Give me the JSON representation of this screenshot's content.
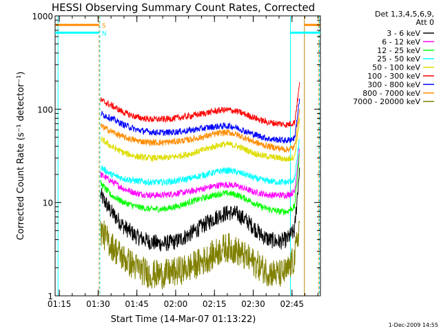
{
  "chart_data": {
    "type": "line",
    "title": "HESSI Observing Summary Count Rates, Corrected",
    "xlabel": "Start Time (14-Mar-07 01:13:22)",
    "ylabel": "Corrected Count Rate (s⁻¹ detector⁻¹)",
    "y_scale": "log",
    "ylim": [
      1,
      1000
    ],
    "xlim_minutes": [
      73.37,
      176
    ],
    "x_ticks": [
      "01:15",
      "01:30",
      "01:45",
      "02:00",
      "02:15",
      "02:30",
      "02:45"
    ],
    "y_ticks": [
      "1",
      "10",
      "100",
      "1000"
    ],
    "legend_header": [
      "Det 1,3,4,5,6,9,",
      "Att 0"
    ],
    "legend_position": "right",
    "series": [
      {
        "name": "3 - 6 keV",
        "color": "#000000",
        "x": [
          91,
          95,
          100,
          105,
          110,
          115,
          120,
          125,
          130,
          135,
          138,
          141,
          144,
          147,
          150,
          153,
          156,
          160,
          163,
          166,
          168
        ],
        "y": [
          12,
          8,
          5.5,
          4.3,
          3.8,
          3.6,
          3.8,
          4.5,
          5.5,
          6.8,
          7.5,
          7.8,
          7.5,
          6.5,
          5.5,
          4.5,
          4,
          3.8,
          4,
          5,
          25
        ]
      },
      {
        "name": "6 - 12 keV",
        "color": "#ff00ff",
        "x": [
          91,
          95,
          100,
          105,
          110,
          115,
          120,
          125,
          130,
          135,
          138,
          141,
          144,
          147,
          150,
          153,
          156,
          160,
          163,
          166,
          168
        ],
        "y": [
          20,
          17,
          14,
          12.5,
          12,
          12,
          12.5,
          13,
          14,
          15,
          15.5,
          15.5,
          15,
          14,
          13,
          12.5,
          12,
          12,
          12,
          13,
          40
        ]
      },
      {
        "name": "12 - 25 keV",
        "color": "#00ff00",
        "x": [
          91,
          95,
          100,
          105,
          110,
          115,
          120,
          125,
          130,
          135,
          138,
          141,
          144,
          147,
          150,
          153,
          156,
          160,
          163,
          166,
          168
        ],
        "y": [
          16,
          12,
          10,
          9,
          8.5,
          8.5,
          9,
          10,
          11,
          12,
          12.5,
          12.5,
          12,
          11,
          10,
          9,
          8.5,
          8,
          8,
          9,
          35
        ]
      },
      {
        "name": "25 - 50 keV",
        "color": "#00ffff",
        "x": [
          91,
          95,
          100,
          105,
          110,
          115,
          120,
          125,
          130,
          135,
          138,
          141,
          144,
          147,
          150,
          153,
          156,
          160,
          163,
          166,
          168
        ],
        "y": [
          24,
          20,
          18,
          17,
          16.5,
          16.5,
          17,
          18,
          19.5,
          21,
          22,
          22,
          21,
          20,
          18.5,
          17.5,
          17,
          16.5,
          16.5,
          17.5,
          50
        ]
      },
      {
        "name": "50 - 100 keV",
        "color": "#dddd00",
        "x": [
          91,
          95,
          100,
          105,
          110,
          115,
          120,
          125,
          130,
          135,
          138,
          141,
          144,
          147,
          150,
          153,
          156,
          160,
          163,
          166,
          168
        ],
        "y": [
          48,
          40,
          34,
          31,
          30,
          30,
          31,
          33,
          36,
          40,
          42,
          42,
          40,
          37,
          34,
          32,
          31,
          30,
          29,
          31,
          80
        ]
      },
      {
        "name": "100 - 300 keV",
        "color": "#ff0000",
        "x": [
          91,
          95,
          100,
          105,
          110,
          115,
          120,
          125,
          130,
          135,
          138,
          141,
          144,
          147,
          150,
          153,
          156,
          160,
          163,
          166,
          168
        ],
        "y": [
          125,
          110,
          92,
          82,
          78,
          78,
          80,
          84,
          89,
          95,
          98,
          98,
          94,
          88,
          82,
          76,
          72,
          70,
          68,
          72,
          190
        ]
      },
      {
        "name": "300 - 800 keV",
        "color": "#0000ff",
        "x": [
          91,
          95,
          100,
          105,
          110,
          115,
          120,
          125,
          130,
          135,
          138,
          141,
          144,
          147,
          150,
          153,
          156,
          160,
          163,
          166,
          168
        ],
        "y": [
          90,
          80,
          68,
          60,
          57,
          56,
          57,
          59,
          62,
          65,
          66,
          66,
          63,
          58,
          54,
          51,
          48,
          47,
          46,
          49,
          130
        ]
      },
      {
        "name": "800 - 7000 keV",
        "color": "#ff8c00",
        "x": [
          91,
          95,
          100,
          105,
          110,
          115,
          120,
          125,
          130,
          135,
          138,
          141,
          144,
          147,
          150,
          153,
          156,
          160,
          163,
          166,
          168
        ],
        "y": [
          66,
          58,
          50,
          46,
          44,
          44,
          45,
          47,
          50,
          54,
          56,
          56,
          53,
          49,
          45,
          42,
          40,
          38,
          37,
          39,
          100
        ]
      },
      {
        "name": "7000 - 20000 keV",
        "color": "#808000",
        "x": [
          91,
          95,
          100,
          105,
          110,
          115,
          120,
          125,
          130,
          135,
          138,
          141,
          144,
          147,
          150,
          153,
          156,
          160,
          163,
          166,
          168
        ],
        "y": [
          5,
          3.5,
          2.5,
          2,
          1.7,
          1.7,
          1.8,
          2,
          2.3,
          2.8,
          3.2,
          3.3,
          3,
          2.6,
          2.3,
          2,
          1.8,
          1.7,
          1.8,
          2.5,
          6
        ]
      }
    ],
    "vertical_markers": [
      {
        "x": 74.5,
        "color": "#00ffff",
        "style": "solid"
      },
      {
        "x": 90.4,
        "color": "#ff8c00",
        "style": "dashed"
      },
      {
        "x": 90.4,
        "color": "#00ffff",
        "style": "dashed"
      },
      {
        "x": 164.4,
        "color": "#00ffff",
        "style": "solid"
      },
      {
        "x": 169.8,
        "color": "#b8860b",
        "style": "solid"
      },
      {
        "x": 175.3,
        "color": "#ff8c00",
        "style": "dashed"
      },
      {
        "x": 175.3,
        "color": "#00ffff",
        "style": "dashed"
      }
    ],
    "flag_bars": [
      {
        "color": "#ff8c00",
        "x_ranges": [
          [
            73.37,
            90.4
          ],
          [
            169.8,
            176
          ]
        ],
        "y": 800,
        "label": "S"
      },
      {
        "color": "#00ffff",
        "x_ranges": [
          [
            73.37,
            90.4
          ],
          [
            164.4,
            176
          ]
        ],
        "y": 660,
        "label": "N"
      }
    ],
    "footer_stamp": "1-Dec-2009 14:55"
  }
}
